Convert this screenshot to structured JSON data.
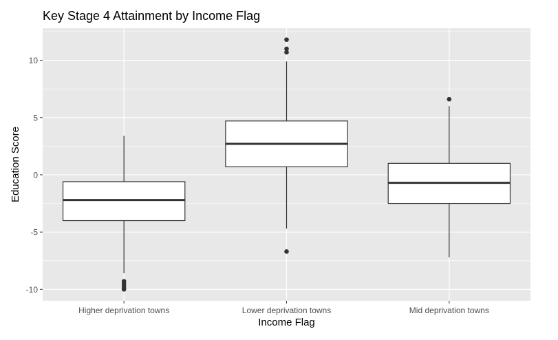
{
  "chart_data": {
    "type": "boxplot",
    "title": "Key Stage 4 Attainment by Income Flag",
    "xlabel": "Income Flag",
    "ylabel": "Education Score",
    "ylim": [
      -11.0,
      12.8
    ],
    "yticks": [
      -10,
      -5,
      0,
      5,
      10
    ],
    "ytick_labels": [
      "-10",
      "-5",
      "0",
      "5",
      "10"
    ],
    "grid": true,
    "colors": {
      "panel": "#e8e8e8",
      "grid": "#ffffff",
      "box_fill": "#ffffff",
      "box_stroke": "#333333",
      "text": "#4d4d4d",
      "title": "#000000"
    },
    "categories": [
      "Higher deprivation towns",
      "Lower deprivation towns",
      "Mid deprivation towns"
    ],
    "boxes": [
      {
        "category": "Higher deprivation towns",
        "whisker_low": -8.6,
        "q1": -4.0,
        "median": -2.2,
        "q3": -0.6,
        "whisker_high": 3.4,
        "outliers": [
          -9.3,
          -9.5,
          -9.7,
          -9.9,
          -10.0
        ]
      },
      {
        "category": "Lower deprivation towns",
        "whisker_low": -4.7,
        "q1": 0.7,
        "median": 2.7,
        "q3": 4.7,
        "whisker_high": 9.9,
        "outliers": [
          -6.7,
          10.7,
          11.0,
          11.8
        ]
      },
      {
        "category": "Mid deprivation towns",
        "whisker_low": -7.2,
        "q1": -2.5,
        "median": -0.7,
        "q3": 1.0,
        "whisker_high": 6.0,
        "outliers": [
          6.6
        ]
      }
    ]
  }
}
